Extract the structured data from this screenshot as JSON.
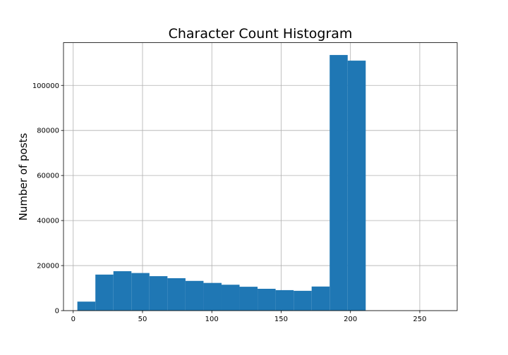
{
  "chart_data": {
    "type": "bar",
    "title": "Character Count Histogram",
    "xlabel": "",
    "ylabel": "Number of posts",
    "xlim": [
      -7,
      277
    ],
    "ylim": [
      0,
      119000
    ],
    "xticks": [
      0,
      50,
      100,
      150,
      200,
      250
    ],
    "yticks": [
      0,
      20000,
      40000,
      60000,
      80000,
      100000
    ],
    "grid": true,
    "bar_color": "#1f77b4",
    "bins": [
      {
        "x_start": 3,
        "x_end": 16,
        "value": 4000
      },
      {
        "x_start": 16,
        "x_end": 29,
        "value": 16000
      },
      {
        "x_start": 29,
        "x_end": 42,
        "value": 17500
      },
      {
        "x_start": 42,
        "x_end": 55,
        "value": 16700
      },
      {
        "x_start": 55,
        "x_end": 68,
        "value": 15300
      },
      {
        "x_start": 68,
        "x_end": 81,
        "value": 14400
      },
      {
        "x_start": 81,
        "x_end": 94,
        "value": 13200
      },
      {
        "x_start": 94,
        "x_end": 107,
        "value": 12300
      },
      {
        "x_start": 107,
        "x_end": 120,
        "value": 11500
      },
      {
        "x_start": 120,
        "x_end": 133,
        "value": 10600
      },
      {
        "x_start": 133,
        "x_end": 146,
        "value": 9700
      },
      {
        "x_start": 146,
        "x_end": 159,
        "value": 9100
      },
      {
        "x_start": 159,
        "x_end": 172,
        "value": 8800
      },
      {
        "x_start": 172,
        "x_end": 185,
        "value": 10700
      },
      {
        "x_start": 185,
        "x_end": 198,
        "value": 113500
      },
      {
        "x_start": 198,
        "x_end": 211,
        "value": 111000
      }
    ]
  }
}
